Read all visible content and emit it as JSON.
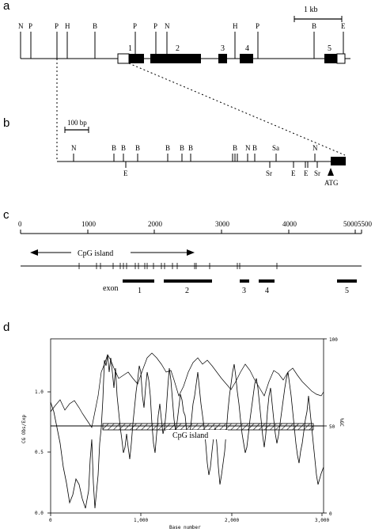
{
  "panel_a": {
    "letter": "a",
    "scale_label": "1 kb",
    "sites_top": [
      "N",
      "P",
      "P",
      "H",
      "B",
      "P",
      "P",
      "N",
      "H",
      "P",
      "B",
      "E"
    ],
    "exon_labels": [
      "1",
      "2",
      "3",
      "4",
      "5"
    ]
  },
  "panel_b": {
    "letter": "b",
    "scale_label": "100 bp",
    "sites_top": [
      "N",
      "B",
      "B",
      "B",
      "B",
      "B",
      "B",
      "B",
      "N",
      "B",
      "Sa",
      "N"
    ],
    "sites_bottom": [
      "E",
      "Sr",
      "E",
      "E",
      "Sr"
    ],
    "atg_label": "ATG"
  },
  "panel_c": {
    "letter": "c",
    "ticks": [
      "0",
      "1000",
      "2000",
      "3000",
      "4000",
      "5000",
      "5500"
    ],
    "cpg_label": "CpG island",
    "exon_title": "exon",
    "exon_labels": [
      "1",
      "2",
      "3",
      "4",
      "5"
    ]
  },
  "panel_d": {
    "letter": "d",
    "left_ticks": [
      "1.0",
      "0.5",
      "0.0"
    ],
    "right_ticks": [
      "100",
      "50",
      "0"
    ],
    "x_ticks": [
      "0",
      "1,000",
      "2,000",
      "3,000"
    ],
    "xlabel": "Base number",
    "ylabel_left": "CG Obs/Exp",
    "ylabel_right": "%GC",
    "cpg_label": "CpG island"
  }
}
